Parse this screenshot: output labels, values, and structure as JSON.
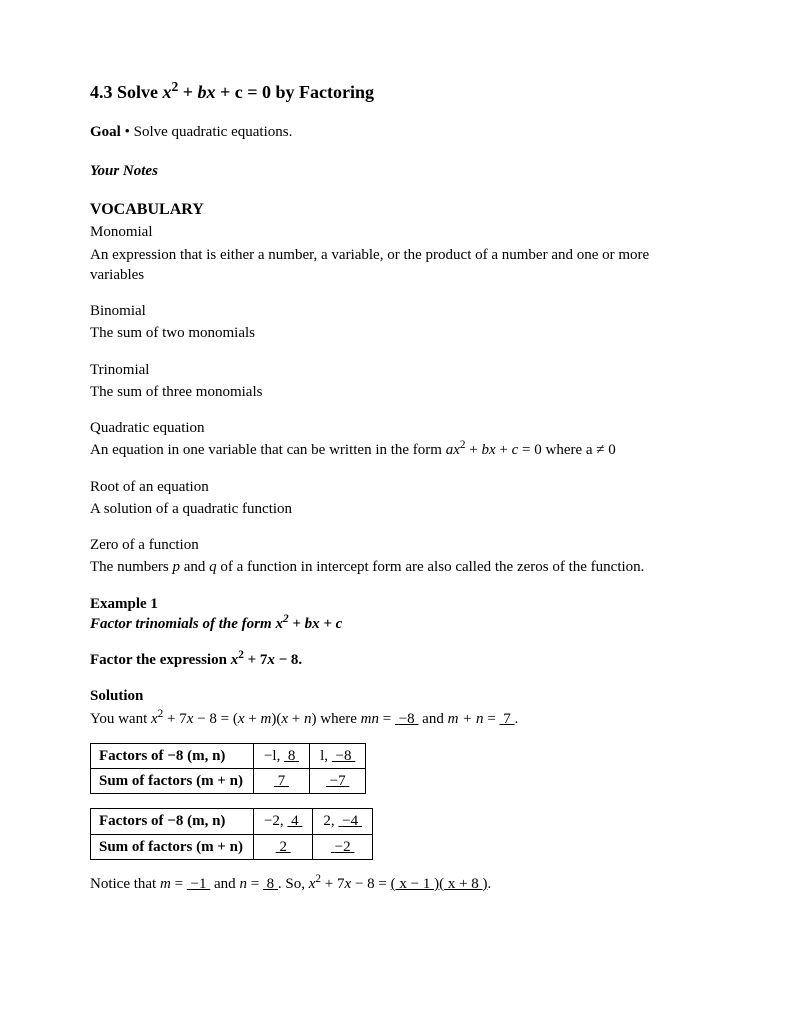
{
  "title_prefix": "4.3 Solve ",
  "title_suffix": " = 0 by Factoring",
  "goal_label": "Goal",
  "goal_text": " Solve quadratic equations.",
  "your_notes": "Your Notes",
  "vocab_heading": "VOCABULARY",
  "vocab": {
    "monomial": {
      "term": "Monomial",
      "def": "An expression that is either a number, a variable, or the product of a number and one or more variables"
    },
    "binomial": {
      "term": "Binomial",
      "def": "The sum of two monomials"
    },
    "trinomial": {
      "term": "Trinomial",
      "def": "The sum of three monomials"
    },
    "quadratic": {
      "term": "Quadratic equation",
      "def_prefix": "An equation in one variable that can be written in the form ",
      "def_suffix": " = 0 where a ≠ 0"
    },
    "root": {
      "term": "Root of an equation",
      "def": "A solution of a quadratic function"
    },
    "zero": {
      "term": "Zero of a function",
      "def_prefix": "The numbers ",
      "def_mid": " of a function in intercept form are also called the zeros of the function."
    }
  },
  "example": {
    "label": "Example 1",
    "title_prefix": "Factor trinomials of the form ",
    "factor_prefix": "Factor the expression ",
    "solution_label": "Solution",
    "solution_text_1": "You want ",
    "solution_text_2": " where ",
    "mn_label": "mn",
    "mn_value": "−8",
    "and": " and ",
    "mplusn_label": "m + n",
    "mplusn_value": "7",
    "period": "."
  },
  "table1": {
    "row1_label": "Factors of −8 (m, n)",
    "row1_c1a": "−l,",
    "row1_c1b": "8",
    "row1_c2a": "l,",
    "row1_c2b": "−8",
    "row2_label": "Sum of factors (m + n)",
    "row2_c1": "7",
    "row2_c2": "−7"
  },
  "table2": {
    "row1_label": "Factors of −8 (m, n)",
    "row1_c1a": "−2,",
    "row1_c1b": "4",
    "row1_c2a": "2,",
    "row1_c2b": "−4",
    "row2_label": "Sum of factors (m + n)",
    "row2_c1": "2",
    "row2_c2": "−2"
  },
  "notice": {
    "prefix": "Notice that ",
    "m_eq": " = ",
    "m_val": "−1",
    "and1": " and ",
    "n_eq": " = ",
    "n_val": "8",
    "so": ". So, ",
    "eq": " = ",
    "f1": "( x − 1 )",
    "f2": "( x + 8 )",
    "period": "."
  }
}
